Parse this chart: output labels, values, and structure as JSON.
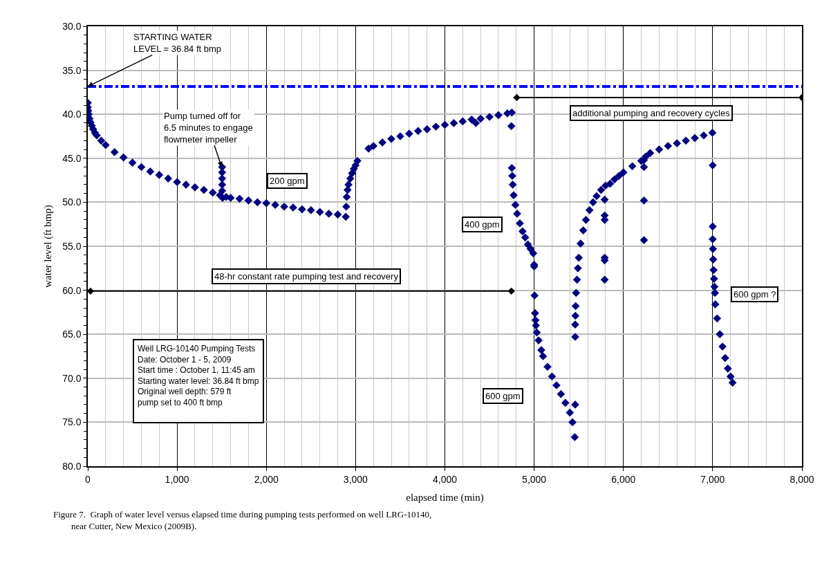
{
  "chart_data": {
    "type": "scatter",
    "xlabel": "elapsed time (min)",
    "ylabel": "water level (ft bmp)",
    "xlim": [
      0,
      8000
    ],
    "xticks": [
      0,
      {
        "value": 1000,
        "label": "1,000"
      },
      {
        "value": 2000,
        "label": "2,000"
      },
      {
        "value": 3000,
        "label": "3,000"
      },
      {
        "value": 4000,
        "label": "4,000"
      },
      {
        "value": 5000,
        "label": "5,000"
      },
      {
        "value": 6000,
        "label": "6,000"
      },
      {
        "value": 7000,
        "label": "7,000"
      },
      {
        "value": 8000,
        "label": "8,000"
      }
    ],
    "ylim": [
      80,
      30
    ],
    "yticks": [
      {
        "value": 30,
        "label": "30.0"
      },
      {
        "value": 35,
        "label": "35.0"
      },
      {
        "value": 40,
        "label": "40.0"
      },
      {
        "value": 45,
        "label": "45.0"
      },
      {
        "value": 50,
        "label": "50.0"
      },
      {
        "value": 55,
        "label": "55.0"
      },
      {
        "value": 60,
        "label": "60.0"
      },
      {
        "value": 65,
        "label": "65.0"
      },
      {
        "value": 70,
        "label": "70.0"
      },
      {
        "value": 75,
        "label": "75.0"
      },
      {
        "value": 80,
        "label": "80.0"
      }
    ],
    "grid": true,
    "series": [
      {
        "marker": "diamond",
        "color": "#000080",
        "x": [
          0,
          0,
          5,
          10,
          20,
          30,
          45,
          60,
          80,
          100,
          150,
          200,
          300,
          400,
          500,
          600,
          700,
          800,
          900,
          1000,
          1100,
          1200,
          1300,
          1400,
          1480,
          1505,
          1505,
          1505,
          1505,
          1505,
          1510,
          1550,
          1600,
          1700,
          1800,
          1900,
          2000,
          2100,
          2200,
          2300,
          2400,
          2500,
          2600,
          2700,
          2800,
          2890,
          2895,
          2900,
          2910,
          2920,
          2940,
          2960,
          2980,
          3000,
          3020,
          3145,
          3200,
          3300,
          3400,
          3500,
          3600,
          3700,
          3800,
          3900,
          4000,
          4100,
          4200,
          4300,
          4347,
          4400,
          4500,
          4600,
          4700,
          4750,
          4745,
          4750,
          4755,
          4760,
          4770,
          4790,
          4810,
          4840,
          4870,
          4900,
          4930,
          4960,
          4990,
          5000,
          5000,
          5005,
          5010,
          5015,
          5020,
          5030,
          5050,
          5080,
          5100,
          5150,
          5200,
          5250,
          5300,
          5350,
          5400,
          5430,
          5455,
          5460,
          5460,
          5460,
          5462,
          5465,
          5470,
          5480,
          5490,
          5500,
          5520,
          5550,
          5580,
          5620,
          5660,
          5700,
          5750,
          5800,
          5790,
          5790,
          5790,
          5790,
          5790,
          5790,
          5850,
          5900,
          5950,
          6000,
          6100,
          6200,
          6250,
          6230,
          6230,
          6230,
          6230,
          6300,
          6400,
          6500,
          6600,
          6700,
          6800,
          6900,
          6997,
          7000,
          7000,
          7000,
          7003,
          7006,
          7010,
          7015,
          7020,
          7025,
          7030,
          7050,
          7080,
          7110,
          7140,
          7170,
          7200,
          7223
        ],
        "values": [
          38.7,
          39.2,
          39.6,
          40.0,
          40.5,
          40.9,
          41.3,
          41.7,
          42.1,
          42.4,
          43.0,
          43.5,
          44.3,
          44.9,
          45.5,
          46.0,
          46.5,
          46.9,
          47.3,
          47.7,
          48.0,
          48.3,
          48.6,
          48.9,
          49.2,
          48.7,
          48.0,
          47.3,
          46.6,
          46.0,
          49.5,
          49.4,
          49.5,
          49.6,
          49.8,
          50.0,
          50.1,
          50.3,
          50.5,
          50.6,
          50.8,
          50.9,
          51.1,
          51.3,
          51.4,
          51.65,
          50.5,
          49.4,
          48.6,
          48.0,
          47.3,
          46.7,
          46.2,
          45.8,
          45.3,
          43.9,
          43.6,
          43.2,
          42.8,
          42.5,
          42.2,
          41.9,
          41.7,
          41.4,
          41.2,
          41.0,
          40.8,
          40.6,
          41.0,
          40.5,
          40.3,
          40.1,
          39.9,
          39.8,
          41.35,
          46.1,
          47.0,
          48.0,
          49.2,
          50.3,
          51.3,
          52.4,
          53.3,
          54.0,
          54.8,
          55.3,
          55.8,
          57.1,
          57.3,
          60.6,
          62.6,
          63.4,
          64.0,
          64.8,
          65.7,
          66.8,
          67.5,
          68.7,
          69.8,
          70.8,
          71.8,
          72.8,
          73.9,
          75.0,
          76.7,
          73.0,
          65.3,
          63.9,
          62.9,
          61.8,
          60.3,
          58.8,
          57.5,
          56.3,
          54.7,
          53.2,
          52.0,
          50.9,
          50.0,
          49.3,
          48.6,
          48.1,
          49.7,
          51.5,
          52.0,
          56.3,
          56.6,
          58.8,
          47.9,
          47.4,
          47.0,
          46.6,
          45.9,
          45.3,
          44.8,
          45.2,
          46.0,
          49.8,
          54.3,
          44.4,
          44.0,
          43.6,
          43.3,
          43.0,
          42.7,
          42.4,
          42.1,
          45.8,
          52.75,
          54.2,
          55.3,
          56.5,
          57.7,
          58.7,
          59.6,
          60.3,
          61.6,
          63.2,
          65.0,
          66.4,
          67.7,
          68.9,
          69.8,
          70.5
        ]
      },
      {
        "type": "line",
        "marker": "diamond",
        "color": "#000000",
        "x": [
          30,
          4745
        ],
        "values": [
          60.1,
          60.1
        ]
      },
      {
        "type": "line",
        "marker": "diamond",
        "color": "#000000",
        "x": [
          4805,
          8000
        ],
        "values": [
          38.1,
          38.1
        ]
      }
    ],
    "ref_lines": [
      {
        "axis": "y",
        "value": 36.84,
        "color": "#0000ff",
        "line_style": "dashdot"
      }
    ],
    "annotations": [
      {
        "text": "STARTING WATER\nLEVEL = 36.84 ft bmp",
        "x": 0,
        "y": 36.84
      },
      {
        "text": "Pump turned off for\n6.5 minutes to engage\nflowmeter impeller",
        "x": 1500,
        "y": 46.0
      },
      "200 gpm",
      "400 gpm",
      "600 gpm",
      "600 gpm ?",
      "additional pumping and recovery cycles",
      "48-hr constant rate pumping test and recovery",
      "Well LRG-10140 Pumping Tests\nDate: October 1 - 5, 2009\nStart time : October 1, 11:45 am\nStarting water level: 36.84 ft bmp\nOriginal well depth: 579 ft\npump set to 400 ft bmp",
      "Figure 7.  Graph of water level versus elapsed time during pumping tests performed on well LRG-10140,\n        near Cutter, New Mexico (2009B)."
    ]
  }
}
